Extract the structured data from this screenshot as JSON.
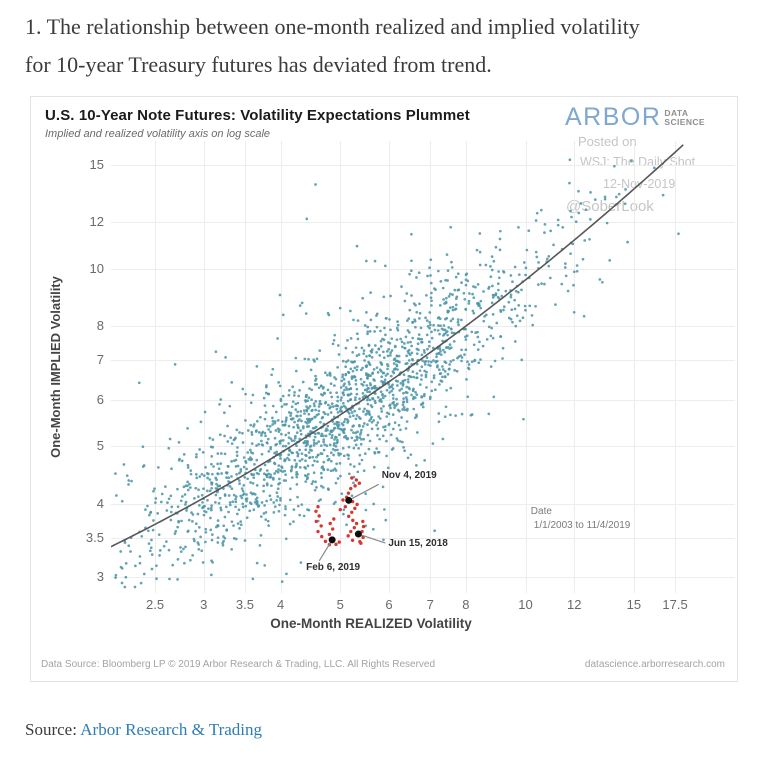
{
  "page": {
    "heading": "1. The relationship between one-month realized and implied volatility\nfor 10-year Treasury futures has deviated from trend.",
    "source_label": "Source: ",
    "source_link": "Arbor Research & Trading"
  },
  "chart": {
    "title": "U.S. 10-Year Note Futures: Volatility Expectations Plummet",
    "subtitle": "Implied and realized volatility axis on log scale",
    "logo": {
      "main": "ARBOR",
      "sub1": "DATA",
      "sub2": "SCIENCE"
    },
    "watermark": {
      "line1": "Posted on",
      "line2": "WSJ: The Daily Shot",
      "line3": "12-Nov-2019",
      "line4": "@SoberLook"
    },
    "footer_left": "Data Source: Bloomberg LP  © 2019 Arbor Research & Trading, LLC. All Rights Reserved",
    "footer_right": "datascience.arborresearch.com"
  },
  "chart_data": {
    "type": "scatter",
    "title": "U.S. 10-Year Note Futures: Volatility Expectations Plummet",
    "xlabel": "One-Month REALIZED Volatility",
    "ylabel": "One-Month IMPLIED Volatility",
    "x_scale": "log",
    "y_scale": "log",
    "x_ticks": [
      2.5,
      3,
      3.5,
      4,
      5,
      6,
      7,
      8,
      10,
      12,
      15,
      17.5
    ],
    "y_ticks": [
      3,
      3.5,
      4,
      5,
      6,
      7,
      8,
      10,
      12,
      15
    ],
    "x_range": [
      2.12,
      21.9
    ],
    "y_range": [
      2.82,
      16.48
    ],
    "grid": true,
    "colors": {
      "cloud": "#4D96A9",
      "highlight": "#D23A31",
      "labeled_point": "#0d0d0d",
      "trend": "#575757",
      "grid": "#ededed",
      "connector": "#8a8a8a"
    },
    "trend_loglog_quadratic": {
      "a": 0.38757,
      "b": 0.35539,
      "c": 0.23848
    },
    "cloud_generator": {
      "n": 1900,
      "seed": 42,
      "lx_mean": 0.695,
      "lx_sd": 0.172,
      "lx_clip": [
        0.332,
        1.28
      ],
      "noise_sd": 0.062,
      "outlier_frac": 0.1,
      "outlier_sd": 0.125,
      "ly_clip": [
        0.458,
        1.205
      ]
    },
    "highlight_points": [
      [
        4.6,
        3.95
      ],
      [
        4.565,
        3.88
      ],
      [
        4.62,
        3.81
      ],
      [
        4.57,
        3.73
      ],
      [
        4.655,
        3.665
      ],
      [
        4.6,
        3.585
      ],
      [
        4.665,
        3.515
      ],
      [
        4.73,
        3.45
      ],
      [
        4.8,
        3.405
      ],
      [
        4.845,
        3.465
      ],
      [
        4.8,
        3.545
      ],
      [
        4.86,
        3.62
      ],
      [
        4.815,
        3.7
      ],
      [
        4.88,
        3.765
      ],
      [
        4.92,
        3.41
      ],
      [
        4.98,
        3.44
      ],
      [
        5.22,
        4.42
      ],
      [
        5.31,
        4.385
      ],
      [
        5.37,
        4.33
      ],
      [
        5.285,
        4.285
      ],
      [
        5.2,
        4.24
      ],
      [
        5.155,
        4.165
      ],
      [
        5.12,
        4.1
      ],
      [
        5.235,
        4.03
      ],
      [
        5.325,
        3.985
      ],
      [
        5.28,
        3.925
      ],
      [
        5.22,
        3.865
      ],
      [
        5.16,
        3.805
      ],
      [
        5.24,
        3.745
      ],
      [
        5.315,
        3.7
      ],
      [
        5.27,
        3.64
      ],
      [
        5.2,
        3.585
      ],
      [
        5.15,
        3.525
      ],
      [
        5.235,
        3.465
      ],
      [
        5.38,
        3.445
      ],
      [
        5.445,
        3.505
      ],
      [
        5.425,
        3.585
      ],
      [
        5.455,
        3.655
      ],
      [
        5.4,
        3.425
      ],
      [
        5.095,
        3.95
      ],
      [
        5.05,
        4.055
      ],
      [
        5.0,
        3.905
      ],
      [
        5.44,
        3.73
      ]
    ],
    "labeled_points": [
      {
        "label": "Nov 4, 2019",
        "x": 5.16,
        "y": 4.05,
        "label_offset": [
          33,
          -30
        ],
        "line_to": [
          30,
          -16
        ]
      },
      {
        "label": "Jun 15, 2018",
        "x": 5.35,
        "y": 3.55,
        "label_offset": [
          30,
          4
        ],
        "line_to": [
          27,
          9
        ]
      },
      {
        "label": "Feb 6, 2019",
        "x": 4.85,
        "y": 3.47,
        "label_offset": [
          -26,
          22
        ],
        "line_to": [
          -13,
          21
        ]
      }
    ],
    "legend": {
      "title": "Date",
      "text": "1/1/2003 to 11/4/2019",
      "x": 10.2,
      "y": 3.86
    }
  }
}
